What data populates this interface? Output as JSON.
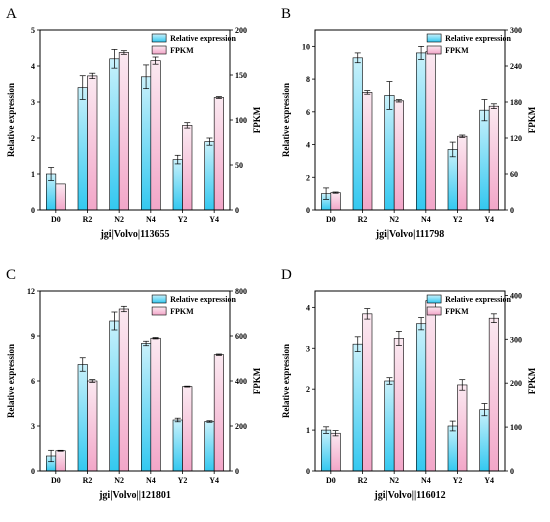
{
  "colors": {
    "relative_top": "#c9f1fb",
    "relative_bottom": "#33c8f0",
    "fpkm_top": "#fbe9f1",
    "fpkm_bottom": "#f2a6c8",
    "axis": "#000000"
  },
  "chart_data": [
    {
      "type": "bar",
      "panel": "A",
      "xlabel": "jgi|Volvo|113655",
      "ylabel": "Relative expression",
      "y2label": "FPKM",
      "categories": [
        "D0",
        "R2",
        "N2",
        "N4",
        "Y2",
        "Y4"
      ],
      "ylim": [
        0,
        5
      ],
      "yticks": [
        0,
        1,
        2,
        3,
        4,
        5
      ],
      "y2lim": [
        0,
        200
      ],
      "y2ticks": [
        0,
        50,
        100,
        150,
        200
      ],
      "legend": "top-right",
      "series": [
        {
          "name": "Relative expression",
          "axis": "left",
          "values": [
            1.0,
            3.4,
            4.2,
            3.7,
            1.4,
            1.9
          ],
          "errors": [
            0.18,
            0.33,
            0.26,
            0.33,
            0.12,
            0.1
          ]
        },
        {
          "name": "FPKM",
          "axis": "right",
          "values": [
            29,
            149,
            175,
            166,
            94,
            125
          ],
          "errors": [
            0,
            3,
            2,
            4,
            3,
            1
          ]
        }
      ]
    },
    {
      "type": "bar",
      "panel": "B",
      "xlabel": "jgi|Volvo|111798",
      "ylabel": "Relative expression",
      "y2label": "FPKM",
      "categories": [
        "D0",
        "R2",
        "N2",
        "N4",
        "Y2",
        "Y4"
      ],
      "ylim": [
        0,
        11
      ],
      "yticks": [
        0,
        2,
        4,
        6,
        8,
        10
      ],
      "y2lim": [
        0,
        300
      ],
      "y2ticks": [
        0,
        60,
        120,
        180,
        240,
        300
      ],
      "legend": "top-right",
      "series": [
        {
          "name": "Relative expression",
          "axis": "left",
          "values": [
            1.0,
            9.3,
            7.0,
            9.6,
            3.7,
            6.1
          ],
          "errors": [
            0.35,
            0.3,
            0.85,
            0.4,
            0.45,
            0.65
          ]
        },
        {
          "name": "FPKM",
          "axis": "right",
          "values": [
            29,
            196,
            182,
            264,
            123,
            173
          ],
          "errors": [
            1,
            3,
            2,
            2,
            2,
            4
          ]
        }
      ]
    },
    {
      "type": "bar",
      "panel": "C",
      "xlabel": "jgi|Volvo||121801",
      "ylabel": "Relative expression",
      "y2label": "FPKM",
      "categories": [
        "D0",
        "R2",
        "N2",
        "N4",
        "Y2",
        "Y4"
      ],
      "ylim": [
        0,
        12
      ],
      "yticks": [
        0,
        3,
        6,
        9,
        12
      ],
      "y2lim": [
        0,
        800
      ],
      "y2ticks": [
        0,
        200,
        400,
        600,
        800
      ],
      "legend": "top-right",
      "series": [
        {
          "name": "Relative expression",
          "axis": "left",
          "values": [
            1.0,
            7.1,
            10.0,
            8.5,
            3.4,
            3.3
          ],
          "errors": [
            0.38,
            0.45,
            0.6,
            0.15,
            0.12,
            0.05
          ]
        },
        {
          "name": "FPKM",
          "axis": "right",
          "values": [
            90,
            400,
            720,
            590,
            375,
            517
          ],
          "errors": [
            2,
            6,
            12,
            3,
            2,
            3
          ]
        }
      ]
    },
    {
      "type": "bar",
      "panel": "D",
      "xlabel": "jgi|Volvo||116012",
      "ylabel": "Relative expression",
      "y2label": "FPKM",
      "categories": [
        "D0",
        "R2",
        "N2",
        "N4",
        "Y2",
        "Y4"
      ],
      "ylim": [
        0,
        4.4
      ],
      "yticks": [
        0,
        1,
        2,
        3,
        4
      ],
      "y2lim": [
        0,
        410
      ],
      "y2ticks": [
        0,
        100,
        200,
        300,
        400
      ],
      "legend": "top-right",
      "series": [
        {
          "name": "Relative expression",
          "axis": "left",
          "values": [
            1.0,
            3.1,
            2.2,
            3.6,
            1.1,
            1.5
          ],
          "errors": [
            0.08,
            0.18,
            0.08,
            0.15,
            0.12,
            0.15
          ]
        },
        {
          "name": "FPKM",
          "axis": "right",
          "values": [
            86,
            358,
            302,
            388,
            196,
            348
          ],
          "errors": [
            6,
            12,
            16,
            3,
            12,
            10
          ]
        }
      ]
    }
  ]
}
